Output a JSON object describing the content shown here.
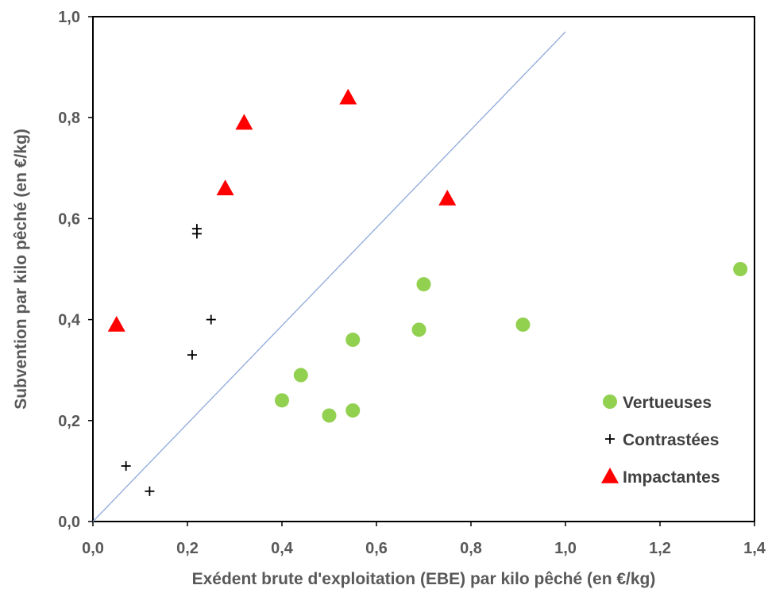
{
  "chart_data": {
    "type": "scatter",
    "xlabel": "Exédent brute d'exploitation (EBE) par kilo pêché (en €/kg)",
    "ylabel": "Subvention par kilo pêché (en €/kg)",
    "xlim": [
      0,
      1.4
    ],
    "ylim": [
      0,
      1.0
    ],
    "x_ticks": [
      "0,0",
      "0,2",
      "0,4",
      "0,6",
      "0,8",
      "1,0",
      "1,2",
      "1,4"
    ],
    "y_ticks": [
      "0,0",
      "0,2",
      "0,4",
      "0,6",
      "0,8",
      "1,0"
    ],
    "grid": false,
    "legend_position": "bottom-right",
    "reference_line": {
      "x": [
        0,
        1.0
      ],
      "y": [
        0,
        0.97
      ],
      "color": "#8EA9DB"
    },
    "series": [
      {
        "name": "Vertueuses",
        "marker": "circle",
        "color": "#92D050",
        "points": [
          {
            "x": 0.4,
            "y": 0.24
          },
          {
            "x": 0.44,
            "y": 0.29
          },
          {
            "x": 0.5,
            "y": 0.21
          },
          {
            "x": 0.55,
            "y": 0.22
          },
          {
            "x": 0.55,
            "y": 0.36
          },
          {
            "x": 0.69,
            "y": 0.38
          },
          {
            "x": 0.7,
            "y": 0.47
          },
          {
            "x": 0.91,
            "y": 0.39
          },
          {
            "x": 1.37,
            "y": 0.5
          }
        ]
      },
      {
        "name": "Contrastées",
        "marker": "plus",
        "color": "#000000",
        "points": [
          {
            "x": 0.07,
            "y": 0.11
          },
          {
            "x": 0.12,
            "y": 0.06
          },
          {
            "x": 0.21,
            "y": 0.33
          },
          {
            "x": 0.22,
            "y": 0.58
          },
          {
            "x": 0.22,
            "y": 0.57
          },
          {
            "x": 0.25,
            "y": 0.4
          }
        ]
      },
      {
        "name": "Impactantes",
        "marker": "triangle",
        "color": "#FF0000",
        "points": [
          {
            "x": 0.05,
            "y": 0.39
          },
          {
            "x": 0.28,
            "y": 0.66
          },
          {
            "x": 0.32,
            "y": 0.79
          },
          {
            "x": 0.54,
            "y": 0.84
          },
          {
            "x": 0.75,
            "y": 0.64
          }
        ]
      }
    ]
  }
}
